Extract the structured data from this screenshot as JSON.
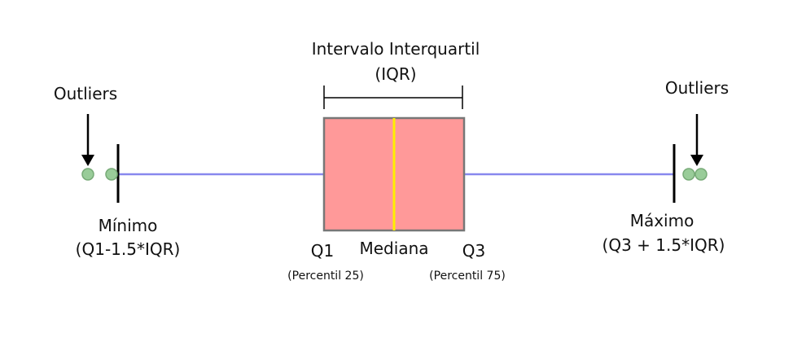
{
  "labels": {
    "iqr_title": "Intervalo Interquartil",
    "iqr_abbr": "(IQR)",
    "outliers_left": "Outliers",
    "outliers_right": "Outliers",
    "minimo": "Mínimo",
    "minimo_formula": "(Q1-1.5*IQR)",
    "maximo": "Máximo",
    "maximo_formula": "(Q3 + 1.5*IQR)",
    "q1": "Q1",
    "q1_note": "(Percentil 25)",
    "mediana": "Mediana",
    "q3": "Q3",
    "q3_note": "(Percentil 75)"
  },
  "colors": {
    "box_fill": "#ff9999",
    "box_stroke": "#777777",
    "median": "#ffee00",
    "whisker": "#8888ee",
    "outlier_fill": "#99cc99",
    "outlier_stroke": "#77aa77",
    "ink": "#000000"
  }
}
